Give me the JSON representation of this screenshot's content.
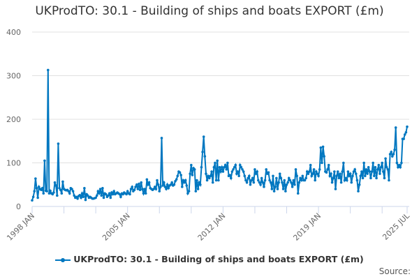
{
  "chart_data": {
    "type": "line",
    "title": "UKProdTO: 30.1 - Building of ships and boats EXPORT (£m)",
    "xlabel": "",
    "ylabel": "",
    "ylim": [
      0,
      400
    ],
    "yticks": [
      "0",
      "100",
      "200",
      "300",
      "400"
    ],
    "xticks": [
      {
        "label": "1998 JAN",
        "date": "1998-01"
      },
      {
        "label": "2005 JAN",
        "date": "2005-01"
      },
      {
        "label": "2012 JAN",
        "date": "2012-01"
      },
      {
        "label": "2019 JAN",
        "date": "2019-01"
      },
      {
        "label": "2025 JUL",
        "date": "2025-07"
      }
    ],
    "x_start": "1998-01",
    "x_end": "2025-07",
    "frequency": "monthly",
    "grid": true,
    "legend_position": "bottom",
    "color": "#0077c0",
    "series": [
      {
        "name": "UKProdTO: 30.1 - Building of ships and boats EXPORT (£m)",
        "values": [
          14,
          22,
          35,
          64,
          42,
          20,
          45,
          40,
          38,
          42,
          30,
          105,
          36,
          35,
          313,
          30,
          36,
          30,
          28,
          32,
          55,
          48,
          25,
          144,
          42,
          38,
          30,
          57,
          40,
          38,
          37,
          38,
          35,
          30,
          42,
          40,
          35,
          25,
          20,
          22,
          18,
          24,
          26,
          20,
          30,
          22,
          42,
          15,
          28,
          25,
          20,
          22,
          20,
          18,
          18,
          19,
          20,
          25,
          35,
          30,
          40,
          25,
          42,
          20,
          30,
          28,
          22,
          25,
          30,
          20,
          32,
          28,
          35,
          28,
          30,
          32,
          30,
          28,
          22,
          30,
          28,
          32,
          30,
          28,
          35,
          30,
          28,
          40,
          45,
          35,
          38,
          45,
          50,
          40,
          52,
          38,
          55,
          40,
          30,
          40,
          30,
          62,
          50,
          55,
          42,
          40,
          38,
          40,
          45,
          40,
          60,
          50,
          35,
          45,
          157,
          48,
          55,
          45,
          40,
          50,
          42,
          48,
          50,
          55,
          48,
          50,
          58,
          62,
          70,
          80,
          78,
          72,
          45,
          60,
          55,
          60,
          48,
          30,
          35,
          75,
          95,
          72,
          88,
          85,
          35,
          60,
          40,
          55,
          50,
          90,
          125,
          160,
          115,
          75,
          60,
          70,
          65,
          70,
          80,
          55,
          90,
          100,
          60,
          105,
          60,
          90,
          80,
          90,
          80,
          90,
          95,
          85,
          100,
          70,
          72,
          65,
          80,
          85,
          90,
          95,
          75,
          80,
          70,
          95,
          90,
          85,
          80,
          70,
          60,
          55,
          65,
          70,
          50,
          60,
          65,
          55,
          85,
          75,
          80,
          60,
          55,
          50,
          65,
          55,
          45,
          60,
          85,
          75,
          78,
          60,
          55,
          40,
          70,
          35,
          45,
          65,
          40,
          55,
          75,
          65,
          55,
          40,
          60,
          35,
          50,
          55,
          65,
          60,
          55,
          45,
          60,
          50,
          85,
          70,
          30,
          55,
          65,
          60,
          70,
          60,
          60,
          65,
          80,
          75,
          80,
          95,
          70,
          75,
          85,
          60,
          80,
          75,
          70,
          85,
          135,
          100,
          137,
          115,
          80,
          78,
          85,
          95,
          70,
          75,
          55,
          65,
          80,
          40,
          70,
          80,
          65,
          75,
          55,
          80,
          100,
          60,
          65,
          60,
          80,
          70,
          75,
          55,
          70,
          80,
          85,
          75,
          60,
          35,
          50,
          70,
          80,
          65,
          100,
          70,
          85,
          75,
          90,
          80,
          65,
          80,
          100,
          70,
          90,
          65,
          85,
          95,
          75,
          90,
          100,
          80,
          65,
          110,
          90,
          85,
          60,
          120,
          125,
          115,
          120,
          130,
          181,
          100,
          90,
          95,
          90,
          100,
          155,
          155,
          165,
          170,
          183
        ]
      }
    ]
  },
  "source_label": "Source:"
}
